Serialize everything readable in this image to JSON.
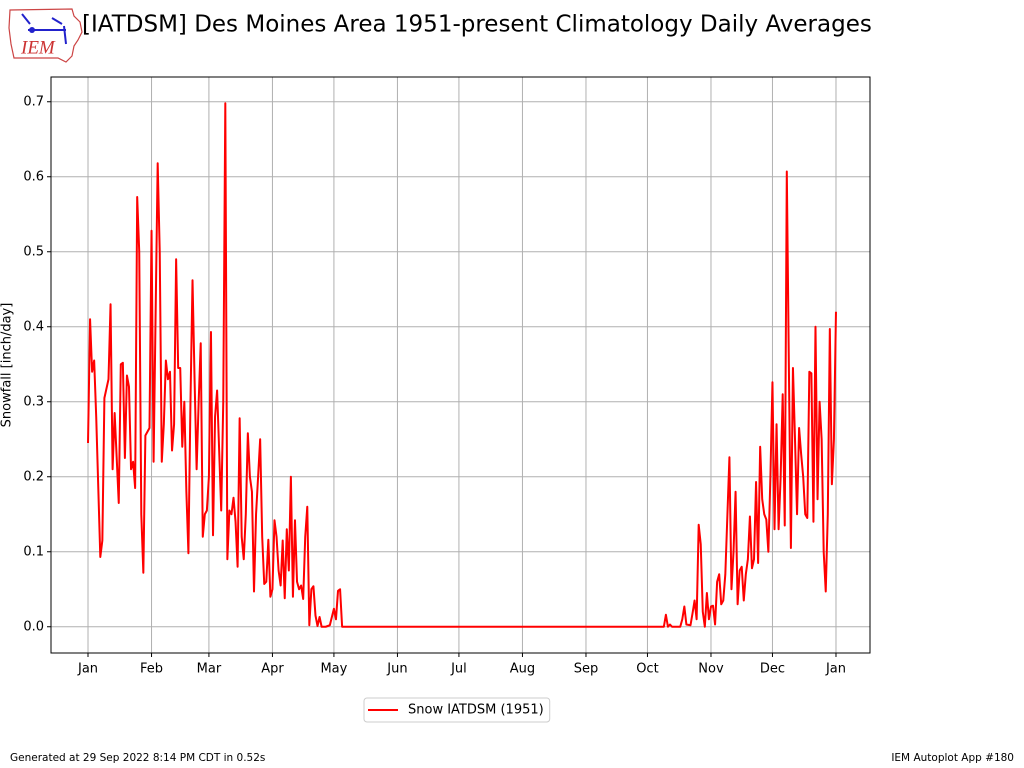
{
  "logo": "IEM",
  "footer": {
    "left": "Generated at 29 Sep 2022 8:14 PM CDT in 0.52s",
    "right": "IEM Autoplot App #180"
  },
  "chart_data": {
    "type": "line",
    "title": "[IATDSM] Des Moines Area 1951-present Climatology Daily Averages",
    "y_label": "Snowfall [inch/day]",
    "xlim": [
      -17.06,
      382.6
    ],
    "xticks": [
      {
        "value": 1,
        "label": "Jan"
      },
      {
        "value": 32,
        "label": "Feb"
      },
      {
        "value": 60,
        "label": "Mar"
      },
      {
        "value": 91,
        "label": "Apr"
      },
      {
        "value": 121,
        "label": "May"
      },
      {
        "value": 152,
        "label": "Jun"
      },
      {
        "value": 182,
        "label": "Jul"
      },
      {
        "value": 213,
        "label": "Aug"
      },
      {
        "value": 244,
        "label": "Sep"
      },
      {
        "value": 274,
        "label": "Oct"
      },
      {
        "value": 305,
        "label": "Nov"
      },
      {
        "value": 335,
        "label": "Dec"
      },
      {
        "value": 366,
        "label": "Jan"
      }
    ],
    "ylim": [
      -0.035,
      0.733
    ],
    "yticks": [
      {
        "value": 0,
        "label": "0.0"
      },
      0.1,
      0.2,
      0.3,
      0.4,
      0.5,
      0.6,
      0.7
    ],
    "grid": true,
    "legend": "lower center outside",
    "series": [
      {
        "name": "Snow IATDSM (1951)",
        "color": "#ff0000",
        "x": [
          1,
          2,
          3,
          4,
          5,
          7,
          8,
          9,
          11,
          12,
          13,
          14,
          16,
          17,
          18,
          19,
          20,
          21,
          22,
          23,
          24,
          25,
          26,
          27,
          28,
          29,
          31,
          32,
          33,
          35,
          36,
          37,
          38,
          39,
          40,
          41,
          42,
          43,
          44,
          45,
          46,
          47,
          48,
          49,
          50,
          51,
          52,
          53,
          54,
          55,
          56,
          57,
          58,
          59,
          60,
          61,
          62,
          63,
          64,
          66,
          67,
          68,
          69,
          70,
          71,
          72,
          73,
          74,
          75,
          76,
          77,
          78,
          79,
          80,
          81,
          82,
          83,
          84,
          85,
          86,
          87,
          88,
          89,
          90,
          91,
          92,
          93,
          94,
          95,
          96,
          97,
          98,
          99,
          100,
          101,
          102,
          103,
          104,
          105,
          106,
          107,
          108,
          109,
          110,
          111,
          112,
          113,
          114,
          115,
          117,
          119,
          121,
          122,
          123,
          124,
          125,
          282,
          283,
          284,
          285,
          286,
          290,
          291,
          292,
          293,
          295,
          296,
          297,
          298,
          299,
          300,
          301,
          302,
          303,
          304,
          305,
          306,
          307,
          308,
          309,
          310,
          311,
          312,
          314,
          315,
          316,
          317,
          318,
          319,
          320,
          321,
          322,
          323,
          324,
          325,
          326,
          327,
          328,
          329,
          330,
          331,
          332,
          333,
          334,
          335,
          336,
          337,
          338,
          339,
          340,
          341,
          342,
          343,
          344,
          345,
          346,
          347,
          348,
          349,
          350,
          351,
          352,
          353,
          354,
          355,
          356,
          357,
          358,
          359,
          360,
          361,
          362,
          363,
          364,
          365,
          366
        ],
        "values": [
          0.245,
          0.41,
          0.34,
          0.355,
          0.28,
          0.093,
          0.115,
          0.305,
          0.33,
          0.43,
          0.21,
          0.285,
          0.165,
          0.35,
          0.352,
          0.225,
          0.335,
          0.32,
          0.21,
          0.22,
          0.185,
          0.573,
          0.5,
          0.15,
          0.072,
          0.255,
          0.265,
          0.528,
          0.22,
          0.618,
          0.5,
          0.22,
          0.27,
          0.355,
          0.33,
          0.34,
          0.235,
          0.27,
          0.49,
          0.345,
          0.345,
          0.24,
          0.3,
          0.18,
          0.098,
          0.3,
          0.462,
          0.33,
          0.21,
          0.3,
          0.378,
          0.12,
          0.15,
          0.155,
          0.2,
          0.393,
          0.122,
          0.28,
          0.315,
          0.155,
          0.3,
          0.698,
          0.09,
          0.155,
          0.15,
          0.172,
          0.14,
          0.08,
          0.278,
          0.12,
          0.09,
          0.15,
          0.258,
          0.2,
          0.18,
          0.047,
          0.15,
          0.2,
          0.25,
          0.12,
          0.057,
          0.06,
          0.116,
          0.04,
          0.05,
          0.142,
          0.12,
          0.075,
          0.055,
          0.115,
          0.038,
          0.13,
          0.075,
          0.2,
          0.04,
          0.142,
          0.06,
          0.05,
          0.055,
          0.037,
          0.12,
          0.16,
          0.002,
          0.05,
          0.054,
          0.015,
          0.001,
          0.013,
          0,
          0,
          0.002,
          0.024,
          0.01,
          0.048,
          0.05,
          0,
          0,
          0.016,
          0,
          0.003,
          0,
          0,
          0.01,
          0.027,
          0.003,
          0.002,
          0.018,
          0.035,
          0.01,
          0.136,
          0.11,
          0.02,
          0,
          0.045,
          0.01,
          0.027,
          0.028,
          0.003,
          0.06,
          0.07,
          0.03,
          0.035,
          0.07,
          0.226,
          0.05,
          0.1,
          0.18,
          0.03,
          0.075,
          0.08,
          0.035,
          0.07,
          0.09,
          0.147,
          0.078,
          0.09,
          0.193,
          0.085,
          0.24,
          0.17,
          0.15,
          0.143,
          0.1,
          0.2,
          0.326,
          0.13,
          0.27,
          0.13,
          0.2,
          0.31,
          0.135,
          0.607,
          0.35,
          0.105,
          0.345,
          0.25,
          0.15,
          0.265,
          0.23,
          0.2,
          0.15,
          0.145,
          0.34,
          0.338,
          0.14,
          0.4,
          0.17,
          0.3,
          0.25,
          0.1,
          0.047,
          0.15,
          0.397,
          0.19,
          0.25,
          0.42
        ]
      }
    ]
  }
}
